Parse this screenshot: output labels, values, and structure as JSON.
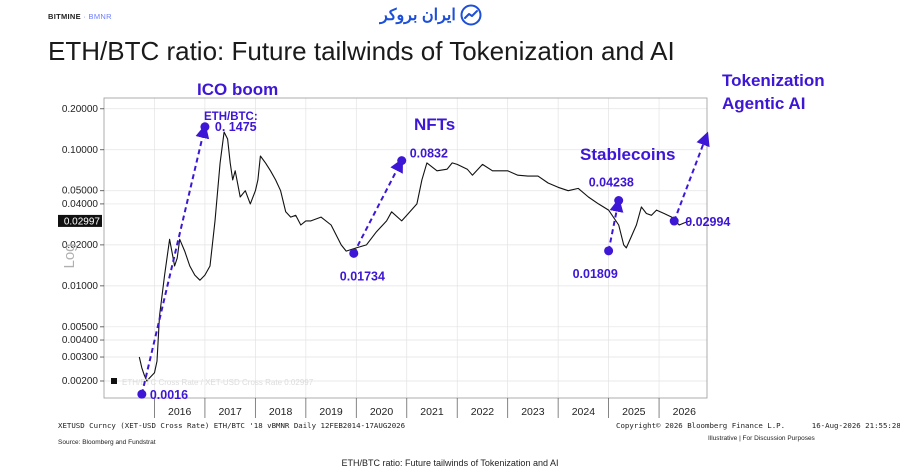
{
  "header": {
    "brand": "BITMINE",
    "separator": "·",
    "ticker": "BMNR",
    "logo_text": "ایران بروکر",
    "title": "ETH/BTC ratio: Future tailwinds of Tokenization and AI"
  },
  "chart_data": {
    "type": "line",
    "title": "ETH/BTC ratio: Future tailwinds of Tokenization and AI",
    "ylabel": "Log",
    "yscale": "log",
    "ylim": [
      0.0015,
      0.24
    ],
    "xlim": [
      2015.0,
      2026.95
    ],
    "grid": true,
    "y_ticks": [
      {
        "value": 0.2,
        "label": "0.20000"
      },
      {
        "value": 0.1,
        "label": "0.10000"
      },
      {
        "value": 0.05,
        "label": "0.05000"
      },
      {
        "value": 0.04,
        "label": "0.04000"
      },
      {
        "value": 0.02,
        "label": "0.02000"
      },
      {
        "value": 0.01,
        "label": "0.01000"
      },
      {
        "value": 0.005,
        "label": "0.00500"
      },
      {
        "value": 0.004,
        "label": "0.00400"
      },
      {
        "value": 0.003,
        "label": "0.00300"
      },
      {
        "value": 0.002,
        "label": "0.00200"
      }
    ],
    "last_value_label": "0.02997",
    "x_ticks": [
      "2016",
      "2017",
      "2018",
      "2019",
      "2020",
      "2021",
      "2022",
      "2023",
      "2024",
      "2025",
      "2026"
    ],
    "series": [
      {
        "name": "ETH/BTC Cross Rate / XET-USD Cross Rate 0.02997",
        "color": "#111111",
        "x": [
          2015.7,
          2015.75,
          2015.8,
          2015.85,
          2015.9,
          2016.0,
          2016.05,
          2016.1,
          2016.2,
          2016.3,
          2016.4,
          2016.45,
          2016.5,
          2016.6,
          2016.7,
          2016.8,
          2016.9,
          2017.0,
          2017.1,
          2017.2,
          2017.3,
          2017.38,
          2017.45,
          2017.5,
          2017.55,
          2017.6,
          2017.7,
          2017.8,
          2017.9,
          2018.0,
          2018.05,
          2018.1,
          2018.2,
          2018.3,
          2018.4,
          2018.5,
          2018.6,
          2018.7,
          2018.8,
          2018.9,
          2019.0,
          2019.1,
          2019.3,
          2019.5,
          2019.7,
          2019.8,
          2020.0,
          2020.2,
          2020.4,
          2020.6,
          2020.7,
          2020.9,
          2021.0,
          2021.2,
          2021.3,
          2021.4,
          2021.6,
          2021.8,
          2021.9,
          2022.0,
          2022.2,
          2022.3,
          2022.5,
          2022.7,
          2022.9,
          2023.0,
          2023.2,
          2023.4,
          2023.6,
          2023.8,
          2024.0,
          2024.2,
          2024.4,
          2024.6,
          2024.8,
          2025.0,
          2025.2,
          2025.3,
          2025.35,
          2025.45,
          2025.55,
          2025.65,
          2025.75,
          2025.85,
          2025.95,
          2026.1,
          2026.25,
          2026.4,
          2026.5,
          2026.62
        ],
        "values": [
          0.003,
          0.0025,
          0.0022,
          0.002,
          0.0021,
          0.0023,
          0.0028,
          0.006,
          0.012,
          0.022,
          0.014,
          0.016,
          0.022,
          0.018,
          0.014,
          0.012,
          0.011,
          0.012,
          0.014,
          0.03,
          0.08,
          0.135,
          0.12,
          0.08,
          0.06,
          0.07,
          0.045,
          0.05,
          0.04,
          0.05,
          0.06,
          0.09,
          0.08,
          0.07,
          0.06,
          0.05,
          0.035,
          0.032,
          0.033,
          0.028,
          0.03,
          0.03,
          0.032,
          0.028,
          0.02,
          0.018,
          0.019,
          0.02,
          0.025,
          0.03,
          0.035,
          0.03,
          0.033,
          0.04,
          0.06,
          0.08,
          0.07,
          0.072,
          0.08,
          0.078,
          0.072,
          0.065,
          0.078,
          0.07,
          0.07,
          0.07,
          0.065,
          0.064,
          0.064,
          0.057,
          0.053,
          0.05,
          0.052,
          0.045,
          0.04,
          0.036,
          0.028,
          0.02,
          0.019,
          0.023,
          0.028,
          0.038,
          0.034,
          0.033,
          0.036,
          0.034,
          0.032,
          0.028,
          0.029,
          0.03
        ]
      }
    ],
    "annotations": [
      {
        "label": "0.0016",
        "x": 2015.75,
        "y": 0.0016
      },
      {
        "label": "0. 1475",
        "x": 2017.0,
        "y": 0.1475
      },
      {
        "label": "0.01734",
        "x": 2019.95,
        "y": 0.01734
      },
      {
        "label": "0.0832",
        "x": 2020.9,
        "y": 0.0832
      },
      {
        "label": "0.01809",
        "x": 2025.0,
        "y": 0.01809
      },
      {
        "label": "0.04238",
        "x": 2025.2,
        "y": 0.04238
      },
      {
        "label": "0.02994",
        "x": 2026.3,
        "y": 0.02994
      }
    ],
    "callouts": {
      "ico_boom": "ICO boom",
      "eth_btc": "ETH/BTC:",
      "nfts": "NFTs",
      "stablecoins": "Stablecoins",
      "tokenization_line1": "Tokenization",
      "tokenization_line2": "Agentic AI"
    },
    "legend_text": "ETH/BTC Cross Rate / XET-USD Cross Rate 0.02997",
    "highlight_color": "#3d16d6",
    "dashed_arrows": [
      {
        "from": [
          2015.75,
          0.0016
        ],
        "to": [
          2017.0,
          0.1475
        ]
      },
      {
        "from": [
          2019.95,
          0.01734
        ],
        "to": [
          2020.9,
          0.0832
        ]
      },
      {
        "from": [
          2025.0,
          0.01809
        ],
        "to": [
          2025.2,
          0.04238
        ]
      },
      {
        "from": [
          2026.3,
          0.02994
        ],
        "to": [
          2026.95,
          0.13
        ]
      }
    ]
  },
  "footer": {
    "bloomberg_left": "XETUSD Curncy (XET-USD Cross Rate) ETH/BTC '18 vBMNR Daily 12FEB2014-17AUG2026",
    "bloomberg_right": "Copyright© 2026 Bloomberg Finance L.P.      16-Aug-2026 21:55:28",
    "source": "Source: Bloomberg and Fundstrat",
    "illustrative": "Illustrative  |  For Discussion Purposes",
    "caption": "ETH/BTC ratio: Future tailwinds of Tokenization and AI"
  }
}
